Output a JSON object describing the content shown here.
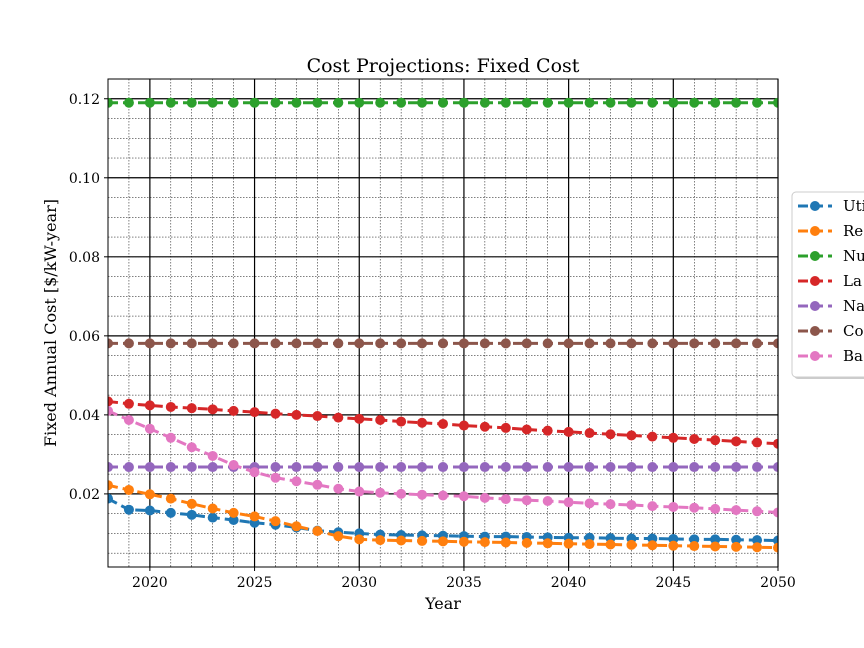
{
  "chart_data": {
    "type": "line",
    "title": "Cost Projections: Fixed Cost",
    "xlabel": "Year",
    "ylabel": "Fixed Annual Cost [$/kW-year]",
    "xlim": [
      2018,
      2050
    ],
    "ylim": [
      0.0015,
      0.125
    ],
    "xticks": [
      2020,
      2025,
      2030,
      2035,
      2040,
      2045,
      2050
    ],
    "yticks": [
      0.02,
      0.04,
      0.06,
      0.08,
      0.1,
      0.12
    ],
    "ytick_labels": [
      "0.02",
      "0.04",
      "0.06",
      "0.08",
      "0.10",
      "0.12"
    ],
    "xtick_labels": [
      "2020",
      "2025",
      "2030",
      "2035",
      "2040",
      "2045",
      "2050"
    ],
    "grid": "major and minor",
    "legend_position": "right, outside (clipped)",
    "x": [
      2018,
      2019,
      2020,
      2021,
      2022,
      2023,
      2024,
      2025,
      2026,
      2027,
      2028,
      2029,
      2030,
      2031,
      2032,
      2033,
      2034,
      2035,
      2036,
      2037,
      2038,
      2039,
      2040,
      2041,
      2042,
      2043,
      2044,
      2045,
      2046,
      2047,
      2048,
      2049,
      2050
    ],
    "series": [
      {
        "name": "Uti",
        "color": "#1f77b4",
        "values": [
          0.0188,
          0.016,
          0.0158,
          0.0152,
          0.0147,
          0.014,
          0.0134,
          0.0127,
          0.0122,
          0.0115,
          0.0107,
          0.0103,
          0.01,
          0.0097,
          0.0096,
          0.0095,
          0.0094,
          0.0093,
          0.0092,
          0.0092,
          0.0091,
          0.009,
          0.0089,
          0.0089,
          0.0088,
          0.0087,
          0.0087,
          0.0086,
          0.0085,
          0.0085,
          0.0084,
          0.0083,
          0.0082
        ]
      },
      {
        "name": "Re",
        "color": "#ff7f0e",
        "values": [
          0.0222,
          0.021,
          0.0199,
          0.0188,
          0.0175,
          0.0163,
          0.0152,
          0.0143,
          0.0131,
          0.0118,
          0.0106,
          0.0093,
          0.0085,
          0.0083,
          0.0082,
          0.0081,
          0.008,
          0.0079,
          0.0078,
          0.0077,
          0.0076,
          0.0075,
          0.0074,
          0.0073,
          0.0072,
          0.0071,
          0.007,
          0.0069,
          0.0068,
          0.0067,
          0.0066,
          0.0065,
          0.0064
        ]
      },
      {
        "name": "Nu",
        "color": "#2ca02c",
        "values": [
          0.119,
          0.119,
          0.119,
          0.119,
          0.119,
          0.119,
          0.119,
          0.119,
          0.119,
          0.119,
          0.119,
          0.119,
          0.119,
          0.119,
          0.119,
          0.119,
          0.119,
          0.119,
          0.119,
          0.119,
          0.119,
          0.119,
          0.119,
          0.119,
          0.119,
          0.119,
          0.119,
          0.119,
          0.119,
          0.119,
          0.119,
          0.119,
          0.119
        ]
      },
      {
        "name": "La",
        "color": "#d62728",
        "values": [
          0.0434,
          0.0428,
          0.0424,
          0.042,
          0.0417,
          0.0414,
          0.041,
          0.0407,
          0.0403,
          0.04,
          0.0397,
          0.0393,
          0.039,
          0.0387,
          0.0383,
          0.038,
          0.0377,
          0.0373,
          0.037,
          0.0367,
          0.0363,
          0.036,
          0.0357,
          0.0354,
          0.0351,
          0.0348,
          0.0345,
          0.0342,
          0.0339,
          0.0336,
          0.0333,
          0.033,
          0.0327
        ]
      },
      {
        "name": "Na",
        "color": "#9467bd",
        "values": [
          0.0268,
          0.0268,
          0.0268,
          0.0268,
          0.0268,
          0.0268,
          0.0268,
          0.0268,
          0.0268,
          0.0268,
          0.0268,
          0.0268,
          0.0268,
          0.0268,
          0.0268,
          0.0268,
          0.0268,
          0.0268,
          0.0268,
          0.0268,
          0.0268,
          0.0268,
          0.0268,
          0.0268,
          0.0268,
          0.0268,
          0.0268,
          0.0268,
          0.0268,
          0.0268,
          0.0268,
          0.0268,
          0.0268
        ]
      },
      {
        "name": "Co",
        "color": "#8c564b",
        "values": [
          0.0581,
          0.0581,
          0.0581,
          0.0581,
          0.0581,
          0.0581,
          0.0581,
          0.0581,
          0.0581,
          0.0581,
          0.0581,
          0.0581,
          0.0581,
          0.0581,
          0.0581,
          0.0581,
          0.0581,
          0.0581,
          0.0581,
          0.0581,
          0.0581,
          0.0581,
          0.0581,
          0.0581,
          0.0581,
          0.0581,
          0.0581,
          0.0581,
          0.0581,
          0.0581,
          0.0581,
          0.0581,
          0.0581
        ]
      },
      {
        "name": "Ba",
        "color": "#e377c2",
        "values": [
          0.041,
          0.0387,
          0.0365,
          0.0342,
          0.0318,
          0.0296,
          0.0273,
          0.0255,
          0.0241,
          0.0232,
          0.0223,
          0.0213,
          0.0206,
          0.0203,
          0.02,
          0.0198,
          0.0196,
          0.0194,
          0.019,
          0.0187,
          0.0184,
          0.0182,
          0.0179,
          0.0176,
          0.0174,
          0.0172,
          0.0169,
          0.0167,
          0.0165,
          0.0162,
          0.0159,
          0.0156,
          0.0153
        ]
      }
    ]
  }
}
